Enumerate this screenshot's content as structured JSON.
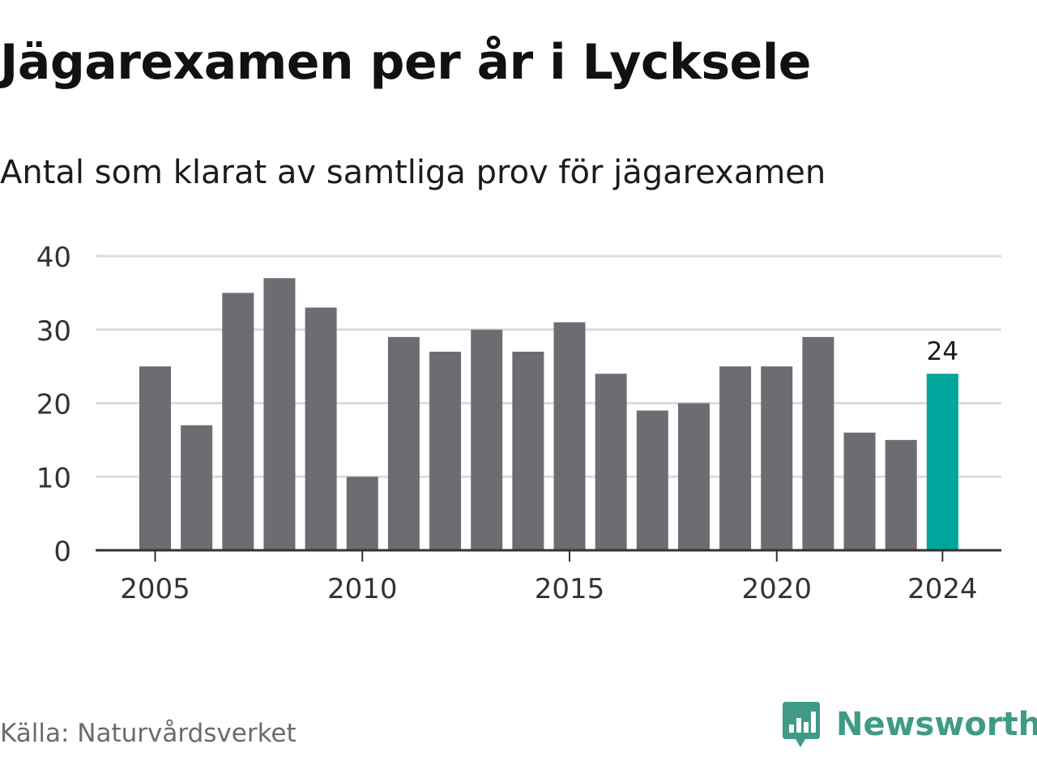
{
  "header": {
    "title": "Jägarexamen per år i Lycksele",
    "subtitle": "Antal som klarat av samtliga prov för jägarexamen"
  },
  "footer": {
    "source": "Källa: Naturvårdsverket",
    "brand": "Newsworthy",
    "brand_icon": "bar-chart-speech-bubble-icon"
  },
  "colors": {
    "bar": "#6d6c72",
    "highlight": "#00a59b",
    "grid": "#dcdcdc",
    "axis": "#333333",
    "brand": "#3f9a86"
  },
  "chart_data": {
    "type": "bar",
    "categories": [
      2005,
      2006,
      2007,
      2008,
      2009,
      2010,
      2011,
      2012,
      2013,
      2014,
      2015,
      2016,
      2017,
      2018,
      2019,
      2020,
      2021,
      2022,
      2023,
      2024
    ],
    "values": [
      25,
      17,
      35,
      37,
      33,
      10,
      29,
      27,
      30,
      27,
      31,
      24,
      19,
      20,
      25,
      25,
      29,
      16,
      15,
      24
    ],
    "highlight_category": 2024,
    "data_labels": [
      {
        "category": 2024,
        "text": "24"
      }
    ],
    "x_tick_labels": [
      "2005",
      "2010",
      "2015",
      "2020",
      "2024"
    ],
    "y_tick_labels": [
      "0",
      "10",
      "20",
      "30",
      "40"
    ],
    "ylim": [
      0,
      40
    ],
    "grid": true,
    "legend": "none"
  }
}
